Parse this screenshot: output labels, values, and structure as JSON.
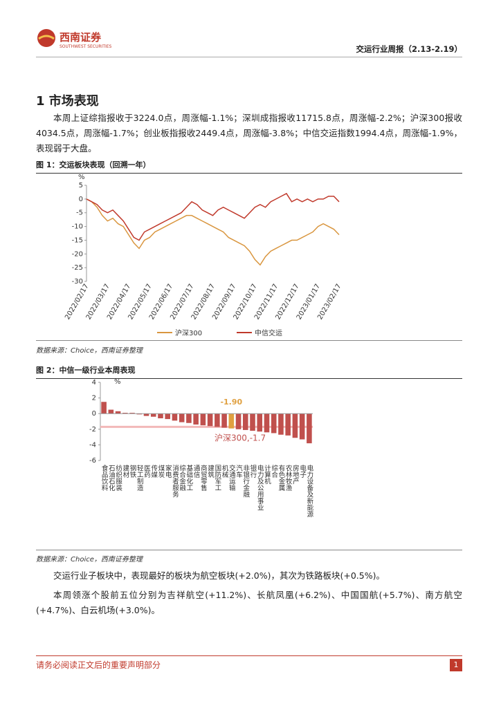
{
  "header": {
    "logo_cn": "西南证券",
    "logo_en": "SOUTHWEST SECURITIES",
    "report_title": "交运行业周报（2.13-2.19）"
  },
  "heading": "1 市场表现",
  "paragraphs": [
    "本周上证综指报收于3224.0点，周涨幅-1.1%；深圳成指报收11715.8点，周涨幅-2.2%；沪深300报收4034.5点，周涨幅-1.7%；创业板指报收2449.4点，周涨幅-3.8%；中信交运指数1994.4点，周涨幅-1.9%，表现弱于大盘。",
    "交运行业子板块中，表现最好的板块为航空板块(+2.0%)，其次为铁路板块(+0.5%)。",
    "本周领涨个股前五位分别为吉祥航空(+11.2%)、长航凤凰(+6.2%)、中国国航(+5.7%)、南方航空(+4.7%)、白云机场(+3.0%)。"
  ],
  "figures": [
    {
      "caption": "图 1：交运板块表现（回溯一年）",
      "source": "数据来源：Choice，西南证券整理"
    },
    {
      "caption": "图 2：中信一级行业本周表现",
      "source": "数据来源：Choice，西南证券整理"
    }
  ],
  "chart_data": [
    {
      "type": "line",
      "y_label": "%",
      "ylim": [
        -30,
        5
      ],
      "yticks": [
        5,
        0,
        -5,
        -10,
        -15,
        -20,
        -25,
        -30
      ],
      "categories": [
        "2022/02/17",
        null,
        null,
        null,
        "2022/03/17",
        null,
        null,
        null,
        "2022/04/17",
        null,
        null,
        null,
        "2022/05/17",
        null,
        null,
        null,
        "2022/06/17",
        null,
        null,
        null,
        "2022/07/17",
        null,
        null,
        null,
        "2022/08/17",
        null,
        null,
        null,
        "2022/09/17",
        null,
        null,
        null,
        "2022/10/17",
        null,
        null,
        null,
        "2022/11/17",
        null,
        null,
        null,
        "2022/12/17",
        null,
        null,
        null,
        "2023/01/17",
        null,
        null,
        null,
        "2023/02/17"
      ],
      "series": [
        {
          "name": "沪深300",
          "color": "#d9963f",
          "values": [
            0,
            -1,
            -3,
            -6,
            -8,
            -7,
            -9,
            -10,
            -13,
            -16,
            -18,
            -15,
            -14,
            -12,
            -11,
            -10,
            -9,
            -8,
            -7,
            -6,
            -6,
            -7,
            -8,
            -9,
            -10,
            -11,
            -12,
            -14,
            -15,
            -16,
            -17,
            -19,
            -22,
            -24,
            -21,
            -19,
            -18,
            -17,
            -16,
            -15,
            -15,
            -14,
            -13,
            -12,
            -10,
            -9,
            -10,
            -11,
            -13
          ]
        },
        {
          "name": "中信交运",
          "color": "#c0392b",
          "values": [
            0,
            -1,
            -2,
            -4,
            -5,
            -4,
            -6,
            -8,
            -11,
            -14,
            -15,
            -12,
            -11,
            -10,
            -9,
            -8,
            -7,
            -6,
            -5,
            -3,
            -1,
            -2,
            -4,
            -5,
            -6,
            -4,
            -3,
            -4,
            -5,
            -6,
            -7,
            -5,
            -3,
            -2,
            -3,
            -1,
            0,
            1,
            2,
            -1,
            0,
            -1,
            0,
            -1,
            0,
            0,
            1,
            1,
            -1
          ]
        }
      ]
    },
    {
      "type": "bar",
      "y_label": "%",
      "ylim": [
        -6,
        4
      ],
      "yticks": [
        4,
        2,
        0,
        -2,
        -4,
        -6
      ],
      "categories": [
        "食品饮料",
        "石油石化",
        "纺织服装",
        "建材",
        "钢铁",
        "轻工制造",
        "医药",
        "传媒",
        "煤炭",
        "家电",
        "消费者服务",
        "综合金融",
        "基础化工",
        "通信",
        "商贸零售",
        "建筑",
        "国防军工",
        "机械",
        "交通运输",
        "汽车",
        "非银行金融",
        "银行",
        "电力及公用事业",
        "计算机",
        "综合",
        "有色金属",
        "农林牧渔",
        "房地产",
        "电子",
        "电力设备及新能源"
      ],
      "values": [
        1.5,
        0.5,
        0.3,
        0.1,
        0.1,
        -0.1,
        -0.3,
        -0.4,
        -0.6,
        -0.7,
        -0.9,
        -1.1,
        -1.2,
        -1.4,
        -1.5,
        -1.6,
        -1.7,
        -1.8,
        -1.9,
        -2.0,
        -2.1,
        -2.2,
        -2.3,
        -2.4,
        -2.5,
        -2.7,
        -2.8,
        -3.1,
        -3.3,
        -3.8
      ],
      "value_labels": [
        null,
        null,
        null,
        null,
        null,
        null,
        null,
        null,
        null,
        null,
        null,
        null,
        null,
        null,
        null,
        null,
        null,
        null,
        "-1.90",
        null,
        null,
        null,
        null,
        null,
        null,
        null,
        null,
        null,
        null,
        null
      ],
      "colors": [
        "#c0504d",
        "#c0504d",
        "#c0504d",
        "#c0504d",
        "#c0504d",
        "#c0504d",
        "#c0504d",
        "#c0504d",
        "#c0504d",
        "#c0504d",
        "#c0504d",
        "#c0504d",
        "#c0504d",
        "#c0504d",
        "#c0504d",
        "#c0504d",
        "#c0504d",
        "#c0504d",
        "#e0a040",
        "#c0504d",
        "#c0504d",
        "#c0504d",
        "#c0504d",
        "#c0504d",
        "#c0504d",
        "#c0504d",
        "#c0504d",
        "#c0504d",
        "#c0504d",
        "#c0504d"
      ],
      "reference_line": {
        "label": "沪深300,-1.7",
        "value": -1.7,
        "color": "#f2b8b8"
      }
    }
  ],
  "footer": {
    "disclaimer": "请务必阅读正文后的重要声明部分",
    "page": "1"
  }
}
